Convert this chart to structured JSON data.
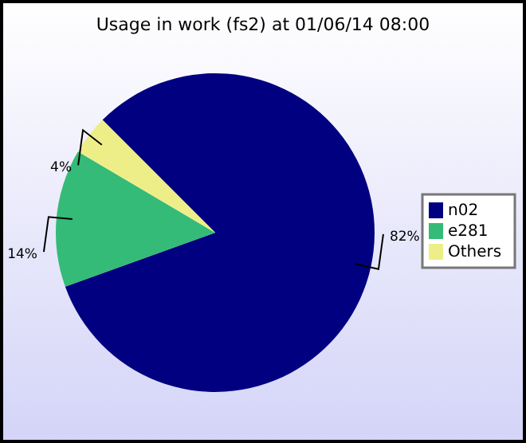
{
  "chart_data": {
    "type": "pie",
    "title": "Usage in work (fs2) at 01/06/14 08:00",
    "categories": [
      "n02",
      "e281",
      "Others"
    ],
    "values": [
      82,
      14,
      4
    ],
    "colors": [
      "#000080",
      "#33bb77",
      "#eeee88"
    ],
    "value_labels": [
      "82%",
      "14%",
      "4%"
    ],
    "legend": "right"
  }
}
